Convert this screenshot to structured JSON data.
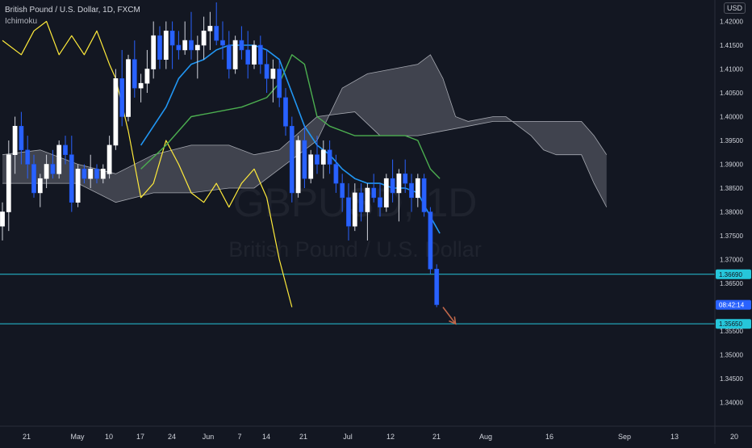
{
  "header": {
    "title": "British Pound / U.S. Dollar, 1D, FXCM",
    "indicator": "Ichimoku",
    "currency": "USD"
  },
  "watermark": {
    "symbol": "GBPUSD, 1D",
    "name": "British Pound / U.S. Dollar"
  },
  "colors": {
    "background": "#131722",
    "up_candle": "#ffffff",
    "down_candle": "#2962ff",
    "conversion_line": "#2196f3",
    "base_line": "#4caf50",
    "lagging_span": "#ffeb3b",
    "cloud": "#787b86",
    "horizontal_line": "#26c6da",
    "arrow": "#c0674a"
  },
  "chart_data": {
    "type": "candlestick",
    "title": "British Pound / U.S. Dollar, 1D, FXCM",
    "ylim": [
      1.335,
      1.4245
    ],
    "y_ticks": [
      "1.34000",
      "1.34500",
      "1.35000",
      "1.35500",
      "1.36000",
      "1.36500",
      "1.37000",
      "1.37500",
      "1.38000",
      "1.38500",
      "1.39000",
      "1.39500",
      "1.40000",
      "1.40500",
      "1.41000",
      "1.41500",
      "1.42000"
    ],
    "x_ticks": [
      "21",
      "May",
      "10",
      "17",
      "24",
      "Jun",
      "7",
      "14",
      "21",
      "Jul",
      "12",
      "21",
      "Aug",
      "16",
      "Sep",
      "13",
      "20"
    ],
    "candles": [
      [
        1.377,
        1.382,
        1.374,
        1.38
      ],
      [
        1.38,
        1.395,
        1.376,
        1.392
      ],
      [
        1.392,
        1.4,
        1.388,
        1.398
      ],
      [
        1.398,
        1.401,
        1.39,
        1.393
      ],
      [
        1.393,
        1.396,
        1.387,
        1.39
      ],
      [
        1.39,
        1.392,
        1.383,
        1.384
      ],
      [
        1.384,
        1.388,
        1.381,
        1.387
      ],
      [
        1.387,
        1.392,
        1.385,
        1.39
      ],
      [
        1.39,
        1.393,
        1.387,
        1.388
      ],
      [
        1.388,
        1.395,
        1.387,
        1.394
      ],
      [
        1.394,
        1.396,
        1.39,
        1.392
      ],
      [
        1.392,
        1.396,
        1.38,
        1.382
      ],
      [
        1.382,
        1.39,
        1.381,
        1.389
      ],
      [
        1.389,
        1.39,
        1.386,
        1.387
      ],
      [
        1.387,
        1.392,
        1.385,
        1.389
      ],
      [
        1.389,
        1.39,
        1.386,
        1.387
      ],
      [
        1.387,
        1.39,
        1.386,
        1.389
      ],
      [
        1.388,
        1.396,
        1.387,
        1.394
      ],
      [
        1.394,
        1.41,
        1.393,
        1.408
      ],
      [
        1.408,
        1.414,
        1.398,
        1.4
      ],
      [
        1.4,
        1.413,
        1.399,
        1.412
      ],
      [
        1.412,
        1.416,
        1.404,
        1.406
      ],
      [
        1.406,
        1.409,
        1.403,
        1.407
      ],
      [
        1.407,
        1.414,
        1.405,
        1.41
      ],
      [
        1.41,
        1.42,
        1.408,
        1.417
      ],
      [
        1.417,
        1.419,
        1.41,
        1.412
      ],
      [
        1.412,
        1.42,
        1.41,
        1.418
      ],
      [
        1.418,
        1.42,
        1.41,
        1.415
      ],
      [
        1.415,
        1.418,
        1.412,
        1.414
      ],
      [
        1.414,
        1.42,
        1.413,
        1.416
      ],
      [
        1.416,
        1.422,
        1.412,
        1.414
      ],
      [
        1.414,
        1.417,
        1.408,
        1.415
      ],
      [
        1.415,
        1.421,
        1.412,
        1.418
      ],
      [
        1.418,
        1.422,
        1.414,
        1.419
      ],
      [
        1.419,
        1.424,
        1.415,
        1.416
      ],
      [
        1.416,
        1.42,
        1.412,
        1.415
      ],
      [
        1.415,
        1.418,
        1.408,
        1.41
      ],
      [
        1.41,
        1.417,
        1.409,
        1.416
      ],
      [
        1.416,
        1.419,
        1.412,
        1.414
      ],
      [
        1.414,
        1.418,
        1.408,
        1.411
      ],
      [
        1.411,
        1.416,
        1.41,
        1.415
      ],
      [
        1.415,
        1.417,
        1.409,
        1.411
      ],
      [
        1.411,
        1.414,
        1.405,
        1.408
      ],
      [
        1.408,
        1.412,
        1.403,
        1.41
      ],
      [
        1.41,
        1.412,
        1.402,
        1.404
      ],
      [
        1.404,
        1.406,
        1.396,
        1.398
      ],
      [
        1.398,
        1.4,
        1.382,
        1.384
      ],
      [
        1.384,
        1.396,
        1.383,
        1.395
      ],
      [
        1.395,
        1.398,
        1.385,
        1.387
      ],
      [
        1.387,
        1.393,
        1.386,
        1.392
      ],
      [
        1.392,
        1.396,
        1.388,
        1.39
      ],
      [
        1.39,
        1.395,
        1.387,
        1.393
      ],
      [
        1.393,
        1.395,
        1.388,
        1.39
      ],
      [
        1.39,
        1.392,
        1.384,
        1.386
      ],
      [
        1.386,
        1.388,
        1.38,
        1.383
      ],
      [
        1.383,
        1.386,
        1.374,
        1.377
      ],
      [
        1.377,
        1.386,
        1.376,
        1.384
      ],
      [
        1.384,
        1.386,
        1.378,
        1.38
      ],
      [
        1.38,
        1.386,
        1.374,
        1.385
      ],
      [
        1.385,
        1.388,
        1.382,
        1.383
      ],
      [
        1.383,
        1.386,
        1.379,
        1.381
      ],
      [
        1.381,
        1.388,
        1.38,
        1.387
      ],
      [
        1.387,
        1.391,
        1.382,
        1.384
      ],
      [
        1.384,
        1.389,
        1.378,
        1.388
      ],
      [
        1.388,
        1.391,
        1.384,
        1.386
      ],
      [
        1.386,
        1.388,
        1.38,
        1.383
      ],
      [
        1.383,
        1.388,
        1.381,
        1.387
      ],
      [
        1.387,
        1.388,
        1.379,
        1.38
      ],
      [
        1.38,
        1.381,
        1.367,
        1.368
      ],
      [
        1.368,
        1.369,
        1.36,
        1.3605
      ]
    ],
    "conversion_line": [
      [
        22,
        1.394
      ],
      [
        24,
        1.398
      ],
      [
        26,
        1.402
      ],
      [
        28,
        1.408
      ],
      [
        30,
        1.411
      ],
      [
        32,
        1.412
      ],
      [
        34,
        1.414
      ],
      [
        36,
        1.415
      ],
      [
        38,
        1.415
      ],
      [
        40,
        1.415
      ],
      [
        42,
        1.414
      ],
      [
        44,
        1.412
      ],
      [
        46,
        1.405
      ],
      [
        48,
        1.398
      ],
      [
        50,
        1.394
      ],
      [
        52,
        1.392
      ],
      [
        54,
        1.389
      ],
      [
        56,
        1.387
      ],
      [
        58,
        1.386
      ],
      [
        60,
        1.386
      ],
      [
        62,
        1.385
      ],
      [
        64,
        1.385
      ],
      [
        66,
        1.384
      ],
      [
        68,
        1.379
      ],
      [
        69.5,
        1.3755
      ]
    ],
    "base_line": [
      [
        22,
        1.389
      ],
      [
        26,
        1.394
      ],
      [
        30,
        1.4
      ],
      [
        38,
        1.402
      ],
      [
        42,
        1.404
      ],
      [
        44,
        1.407
      ],
      [
        46,
        1.413
      ],
      [
        48,
        1.411
      ],
      [
        50,
        1.4
      ],
      [
        52,
        1.398
      ],
      [
        56,
        1.396
      ],
      [
        60,
        1.396
      ],
      [
        62,
        1.396
      ],
      [
        64,
        1.396
      ],
      [
        66,
        1.395
      ],
      [
        68,
        1.389
      ],
      [
        69.5,
        1.387
      ]
    ],
    "lagging_span": [
      [
        0,
        1.416
      ],
      [
        3,
        1.413
      ],
      [
        5,
        1.418
      ],
      [
        7,
        1.42
      ],
      [
        9,
        1.413
      ],
      [
        11,
        1.417
      ],
      [
        13,
        1.413
      ],
      [
        15,
        1.418
      ],
      [
        17,
        1.411
      ],
      [
        18,
        1.408
      ],
      [
        20,
        1.397
      ],
      [
        22,
        1.383
      ],
      [
        24,
        1.386
      ],
      [
        26,
        1.395
      ],
      [
        28,
        1.39
      ],
      [
        30,
        1.384
      ],
      [
        32,
        1.382
      ],
      [
        34,
        1.386
      ],
      [
        36,
        1.381
      ],
      [
        38,
        1.386
      ],
      [
        40,
        1.389
      ],
      [
        42,
        1.383
      ],
      [
        44,
        1.37
      ],
      [
        46,
        1.36
      ]
    ],
    "senkou_a": [
      [
        0,
        1.392
      ],
      [
        6,
        1.393
      ],
      [
        12,
        1.39
      ],
      [
        18,
        1.388
      ],
      [
        24,
        1.392
      ],
      [
        30,
        1.394
      ],
      [
        36,
        1.394
      ],
      [
        40,
        1.392
      ],
      [
        44,
        1.393
      ],
      [
        50,
        1.4
      ],
      [
        56,
        1.401
      ],
      [
        60,
        1.396
      ],
      [
        66,
        1.396
      ],
      [
        70,
        1.397
      ],
      [
        74,
        1.398
      ],
      [
        78,
        1.399
      ],
      [
        82,
        1.399
      ],
      [
        86,
        1.399
      ],
      [
        88,
        1.399
      ],
      [
        92,
        1.399
      ],
      [
        94,
        1.396
      ],
      [
        96,
        1.392
      ]
    ],
    "senkou_b": [
      [
        0,
        1.386
      ],
      [
        6,
        1.386
      ],
      [
        12,
        1.386
      ],
      [
        18,
        1.382
      ],
      [
        24,
        1.384
      ],
      [
        30,
        1.384
      ],
      [
        36,
        1.385
      ],
      [
        40,
        1.385
      ],
      [
        44,
        1.389
      ],
      [
        50,
        1.395
      ],
      [
        54,
        1.406
      ],
      [
        58,
        1.409
      ],
      [
        62,
        1.41
      ],
      [
        66,
        1.411
      ],
      [
        68,
        1.413
      ],
      [
        70,
        1.408
      ],
      [
        72,
        1.4
      ],
      [
        74,
        1.399
      ],
      [
        78,
        1.4
      ],
      [
        80,
        1.4
      ],
      [
        84,
        1.396
      ],
      [
        86,
        1.393
      ],
      [
        88,
        1.392
      ],
      [
        92,
        1.392
      ],
      [
        94,
        1.386
      ],
      [
        96,
        1.381
      ]
    ],
    "hlines": [
      {
        "y": 1.3669,
        "label": "1.36690"
      },
      {
        "y": 1.3565,
        "label": "1.35650"
      }
    ],
    "price_badge": {
      "y": 1.3605,
      "label": "08:42:14"
    },
    "arrow": {
      "from": [
        70,
        1.36
      ],
      "to": [
        72,
        1.3565
      ]
    }
  }
}
